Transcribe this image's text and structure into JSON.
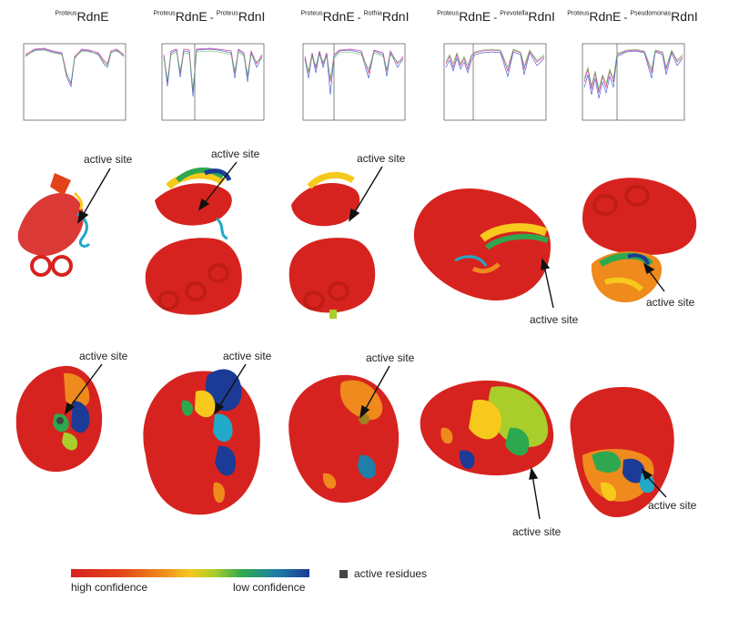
{
  "titles": [
    {
      "sup1": "Proteus",
      "main1": "RdnE",
      "dash": "",
      "sup2": "",
      "main2": ""
    },
    {
      "sup1": "Proteus",
      "main1": "RdnE",
      "dash": "-",
      "sup2": "Proteus",
      "main2": "RdnI"
    },
    {
      "sup1": "Proteus",
      "main1": "RdnE",
      "dash": "-",
      "sup2": "Rothia",
      "main2": "RdnI"
    },
    {
      "sup1": "Proteus",
      "main1": "RdnE",
      "dash": "-",
      "sup2": "Prevotella",
      "main2": "RdnI"
    },
    {
      "sup1": "Proteus",
      "main1": "RdnE",
      "dash": "-",
      "sup2": "Pseudomonas",
      "main2": "RdnI"
    }
  ],
  "active_site_label": "active site",
  "legend": {
    "high": "high confidence",
    "low": "low confidence",
    "active_residues": "active residues"
  },
  "colors": {
    "high": "#d7231f",
    "orange": "#ef8a1c",
    "yellow": "#f7c91d",
    "green": "#2ea84f",
    "cyan": "#21a9c9",
    "blue": "#1b3b96",
    "active": "#444444"
  }
}
